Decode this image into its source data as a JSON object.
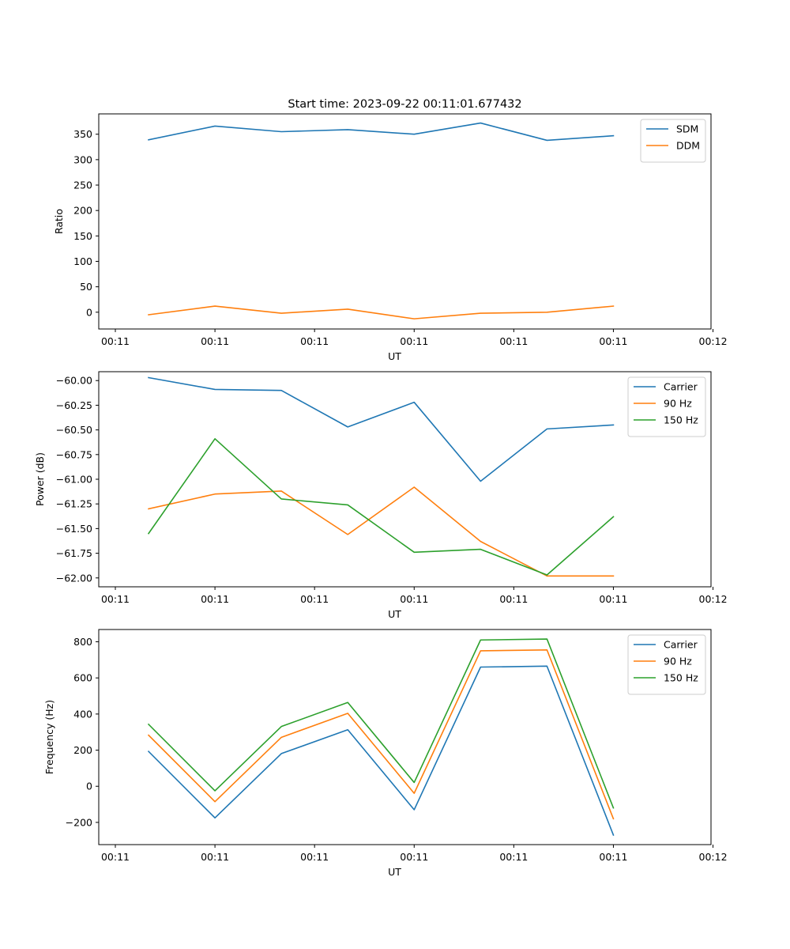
{
  "figure_title": "Start time: 2023-09-22 00:11:01.677432",
  "colors": {
    "blue": "#1f77b4",
    "orange": "#ff7f0e",
    "green": "#2ca02c"
  },
  "chart_data": [
    {
      "type": "line",
      "title": "Start time: 2023-09-22 00:11:01.677432",
      "xlabel": "UT",
      "ylabel": "Ratio",
      "x": [
        1,
        2,
        3,
        4,
        5,
        6,
        7,
        8
      ],
      "xlim": [
        0.25,
        9.47
      ],
      "xticks": [
        0.5,
        2.0,
        3.5,
        5.0,
        6.5,
        8.0,
        9.5
      ],
      "xtick_labels": [
        "00:11",
        "00:11",
        "00:11",
        "00:11",
        "00:11",
        "00:11",
        "00:11"
      ],
      "xtick_last_label": "00:12",
      "ylim": [
        -33,
        390
      ],
      "yticks": [
        0,
        50,
        100,
        150,
        200,
        250,
        300,
        350
      ],
      "ytick_labels": [
        "0",
        "50",
        "100",
        "150",
        "200",
        "250",
        "300",
        "350"
      ],
      "legend_position": "top-right",
      "series": [
        {
          "name": "SDM",
          "color": "#1f77b4",
          "values": [
            339,
            366,
            355,
            359,
            350,
            372,
            338,
            347
          ]
        },
        {
          "name": "DDM",
          "color": "#ff7f0e",
          "values": [
            -5,
            12,
            -2,
            6,
            -13,
            -2,
            0,
            12
          ]
        }
      ]
    },
    {
      "type": "line",
      "title": "",
      "xlabel": "UT",
      "ylabel": "Power (dB)",
      "x": [
        1,
        2,
        3,
        4,
        5,
        6,
        7,
        8
      ],
      "xlim": [
        0.25,
        9.47
      ],
      "xticks": [
        0.5,
        2.0,
        3.5,
        5.0,
        6.5,
        8.0,
        9.5
      ],
      "xtick_labels": [
        "00:11",
        "00:11",
        "00:11",
        "00:11",
        "00:11",
        "00:11",
        "00:11"
      ],
      "xtick_last_label": "00:12",
      "ylim": [
        -62.09,
        -59.91
      ],
      "yticks": [
        -62.0,
        -61.75,
        -61.5,
        -61.25,
        -61.0,
        -60.75,
        -60.5,
        -60.25,
        -60.0
      ],
      "ytick_labels": [
        "−62.00",
        "−61.75",
        "−61.50",
        "−61.25",
        "−61.00",
        "−60.75",
        "−60.50",
        "−60.25",
        "−60.00"
      ],
      "legend_position": "top-right",
      "series": [
        {
          "name": "Carrier",
          "color": "#1f77b4",
          "values": [
            -59.97,
            -60.09,
            -60.1,
            -60.47,
            -60.22,
            -61.02,
            -60.49,
            -60.45
          ]
        },
        {
          "name": "90 Hz",
          "color": "#ff7f0e",
          "values": [
            -61.3,
            -61.15,
            -61.12,
            -61.56,
            -61.08,
            -61.63,
            -61.98,
            -61.98
          ]
        },
        {
          "name": "150 Hz",
          "color": "#2ca02c",
          "values": [
            -61.55,
            -60.59,
            -61.2,
            -61.26,
            -61.74,
            -61.71,
            -61.97,
            -61.38
          ]
        }
      ]
    },
    {
      "type": "line",
      "title": "",
      "xlabel": "UT",
      "ylabel": "Frequency (Hz)",
      "x": [
        1,
        2,
        3,
        4,
        5,
        6,
        7,
        8
      ],
      "xlim": [
        0.25,
        9.47
      ],
      "xticks": [
        0.5,
        2.0,
        3.5,
        5.0,
        6.5,
        8.0,
        9.5
      ],
      "xtick_labels": [
        "00:11",
        "00:11",
        "00:11",
        "00:11",
        "00:11",
        "00:11",
        "00:11"
      ],
      "xtick_last_label": "00:12",
      "ylim": [
        -323,
        868
      ],
      "yticks": [
        -200,
        0,
        200,
        400,
        600,
        800
      ],
      "ytick_labels": [
        "−200",
        "0",
        "200",
        "400",
        "600",
        "800"
      ],
      "legend_position": "top-right",
      "series": [
        {
          "name": "Carrier",
          "color": "#1f77b4",
          "values": [
            193,
            -175,
            181,
            313,
            -130,
            660,
            665,
            -270
          ]
        },
        {
          "name": "90 Hz",
          "color": "#ff7f0e",
          "values": [
            283,
            -85,
            271,
            404,
            -39,
            750,
            755,
            -180
          ]
        },
        {
          "name": "150 Hz",
          "color": "#2ca02c",
          "values": [
            343,
            -25,
            331,
            464,
            21,
            810,
            815,
            -120
          ]
        }
      ]
    }
  ]
}
